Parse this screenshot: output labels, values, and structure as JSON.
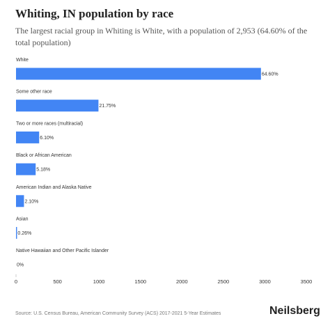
{
  "page": {
    "title": "Whiting, IN population by race",
    "subtitle": "The largest racial group in Whiting is White, with a population of 2,953 (64.60% of the total population)",
    "source": "Source: U.S. Census Bureau, American Community Survey (ACS) 2017-2021 5-Year Estimates",
    "brand": "Neilsberg"
  },
  "chart_data": {
    "type": "bar",
    "orientation": "horizontal",
    "title": "Whiting, IN population by race",
    "xlabel": "",
    "ylabel": "",
    "categories": [
      "White",
      "Some other race",
      "Two or more races (multiracial)",
      "Black or African American",
      "American Indian and Alaska Native",
      "Asian",
      "Native Hawaiian and Other Pacific Islander"
    ],
    "values": [
      2953,
      994,
      279,
      237,
      96,
      12,
      0
    ],
    "data_labels": [
      "64.60%",
      "21.75%",
      "6.10%",
      "5.18%",
      "2.10%",
      "0.26%",
      "0%"
    ],
    "xlim": [
      0,
      3500
    ],
    "xticks": [
      0,
      500,
      1000,
      1500,
      2000,
      2500,
      3000,
      3500
    ],
    "bar_color": "#4285f4",
    "grid": false,
    "legend": "none"
  }
}
